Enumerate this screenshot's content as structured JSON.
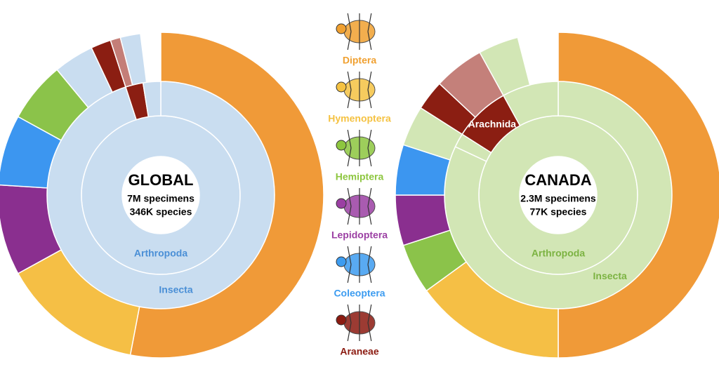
{
  "chart_data": [
    {
      "type": "sunburst",
      "title": "GLOBAL",
      "subtitle": [
        "7M specimens",
        "346K species"
      ],
      "label_color": "#4a8fd6",
      "rings": [
        {
          "labels": [
            "Arthropoda"
          ],
          "values": [
            100
          ],
          "colors": [
            "#c9ddf0"
          ]
        },
        {
          "labels": [
            "Insecta",
            null,
            null
          ],
          "values": [
            95,
            2.5,
            2.5
          ],
          "colors": [
            "#c9ddf0",
            "#8b1e12",
            "#c9ddf0"
          ]
        },
        {
          "labels": [
            null,
            null,
            null,
            null,
            null,
            null,
            null,
            null,
            null
          ],
          "values": [
            53,
            14,
            9,
            7,
            6,
            4,
            2,
            1,
            2
          ],
          "colors": [
            "#f09a38",
            "#f5bf45",
            "#8a2f8f",
            "#3c96f0",
            "#8bc34a",
            "#c9ddf0",
            "#8b1e12",
            "#c47e78",
            "#c9ddf0"
          ]
        }
      ]
    },
    {
      "type": "sunburst",
      "title": "CANADA",
      "subtitle": [
        "2.3M specimens",
        "77K species"
      ],
      "label_color": "#7cb342",
      "rings": [
        {
          "labels": [
            "Arthropoda"
          ],
          "values": [
            100
          ],
          "colors": [
            "#d2e6b5"
          ]
        },
        {
          "labels": [
            "Insecta",
            null,
            "Arachnida",
            null
          ],
          "values": [
            82,
            2,
            8,
            8
          ],
          "colors": [
            "#d2e6b5",
            "#d2e6b5",
            "#8b1e12",
            "#d2e6b5"
          ]
        },
        {
          "labels": [
            null,
            null,
            null,
            null,
            null,
            null,
            null,
            null,
            null
          ],
          "values": [
            50,
            15,
            5,
            5,
            5,
            4,
            3,
            5,
            4
          ],
          "colors": [
            "#f09a38",
            "#f5bf45",
            "#8bc34a",
            "#8a2f8f",
            "#3c96f0",
            "#d2e6b5",
            "#8b1e12",
            "#c4807a",
            "#d2e6b5"
          ]
        }
      ]
    }
  ],
  "legend": [
    {
      "name": "Diptera",
      "color": "#f0a030"
    },
    {
      "name": "Hymenoptera",
      "color": "#f5c242"
    },
    {
      "name": "Hemiptera",
      "color": "#8dc63f"
    },
    {
      "name": "Lepidoptera",
      "color": "#9b3fa3"
    },
    {
      "name": "Coleoptera",
      "color": "#3d9cf0"
    },
    {
      "name": "Araneae",
      "color": "#8b1a10"
    }
  ]
}
